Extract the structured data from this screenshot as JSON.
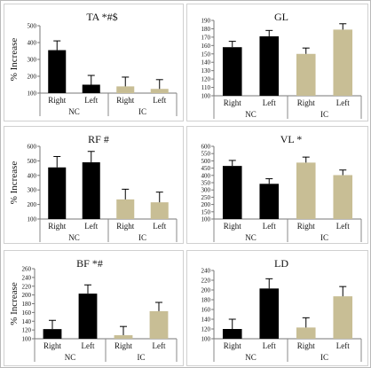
{
  "figure": {
    "ylabel": "% Increase"
  },
  "chart_data": [
    {
      "type": "bar",
      "title": "TA *#$",
      "ylabel": "% Increase",
      "ylim": [
        100,
        500
      ],
      "yticks": [
        100,
        200,
        300,
        400,
        500
      ],
      "categories": [
        "Right",
        "Left",
        "Right",
        "Left"
      ],
      "groups": [
        {
          "label": "NC",
          "span": [
            0,
            1
          ]
        },
        {
          "label": "IC",
          "span": [
            2,
            3
          ]
        }
      ],
      "values": [
        355,
        150,
        140,
        125
      ],
      "errors": [
        55,
        55,
        55,
        55
      ],
      "colors": [
        "#000000",
        "#000000",
        "#c8be95",
        "#c8be95"
      ]
    },
    {
      "type": "bar",
      "title": "GL",
      "ylabel": "",
      "ylim": [
        100,
        190
      ],
      "yticks": [
        100,
        110,
        120,
        130,
        140,
        150,
        160,
        170,
        180,
        190
      ],
      "categories": [
        "Right",
        "Left",
        "Right",
        "Left"
      ],
      "groups": [
        {
          "label": "NC",
          "span": [
            0,
            1
          ]
        },
        {
          "label": "IC",
          "span": [
            2,
            3
          ]
        }
      ],
      "values": [
        158,
        171,
        150,
        179
      ],
      "errors": [
        7,
        7,
        7,
        7
      ],
      "colors": [
        "#000000",
        "#000000",
        "#c8be95",
        "#c8be95"
      ]
    },
    {
      "type": "bar",
      "title": "RF #",
      "ylabel": "% Increase",
      "ylim": [
        100,
        600
      ],
      "yticks": [
        100,
        200,
        300,
        400,
        500,
        600
      ],
      "categories": [
        "Right",
        "Left",
        "Right",
        "Left"
      ],
      "groups": [
        {
          "label": "NC",
          "span": [
            0,
            1
          ]
        },
        {
          "label": "IC",
          "span": [
            2,
            3
          ]
        }
      ],
      "values": [
        455,
        490,
        235,
        215
      ],
      "errors": [
        75,
        75,
        70,
        70
      ],
      "colors": [
        "#000000",
        "#000000",
        "#c8be95",
        "#c8be95"
      ]
    },
    {
      "type": "bar",
      "title": "VL *",
      "ylabel": "",
      "ylim": [
        100,
        600
      ],
      "yticks": [
        100,
        150,
        200,
        250,
        300,
        350,
        400,
        450,
        500,
        550,
        600
      ],
      "categories": [
        "Right",
        "Left",
        "Right",
        "Left"
      ],
      "groups": [
        {
          "label": "NC",
          "span": [
            0,
            1
          ]
        },
        {
          "label": "IC",
          "span": [
            2,
            3
          ]
        }
      ],
      "values": [
        465,
        342,
        488,
        402
      ],
      "errors": [
        38,
        35,
        38,
        35
      ],
      "colors": [
        "#000000",
        "#000000",
        "#c8be95",
        "#c8be95"
      ]
    },
    {
      "type": "bar",
      "title": "BF *#",
      "ylabel": "% Increase",
      "ylim": [
        100,
        260
      ],
      "yticks": [
        100,
        120,
        140,
        160,
        180,
        200,
        220,
        240,
        260
      ],
      "categories": [
        "Right",
        "Left",
        "Right",
        "Left"
      ],
      "groups": [
        {
          "label": "NC",
          "span": [
            0,
            1
          ]
        },
        {
          "label": "IC",
          "span": [
            2,
            3
          ]
        }
      ],
      "values": [
        122,
        203,
        108,
        163
      ],
      "errors": [
        20,
        20,
        20,
        20
      ],
      "colors": [
        "#000000",
        "#000000",
        "#c8be95",
        "#c8be95"
      ]
    },
    {
      "type": "bar",
      "title": "LD",
      "ylabel": "",
      "ylim": [
        100,
        240
      ],
      "yticks": [
        100,
        120,
        140,
        160,
        180,
        200,
        220,
        240
      ],
      "categories": [
        "Right",
        "Left",
        "Right",
        "Left"
      ],
      "groups": [
        {
          "label": "NC",
          "span": [
            0,
            1
          ]
        },
        {
          "label": "IC",
          "span": [
            2,
            3
          ]
        }
      ],
      "values": [
        120,
        203,
        123,
        187
      ],
      "errors": [
        20,
        20,
        20,
        20
      ],
      "colors": [
        "#000000",
        "#000000",
        "#c8be95",
        "#c8be95"
      ]
    }
  ]
}
